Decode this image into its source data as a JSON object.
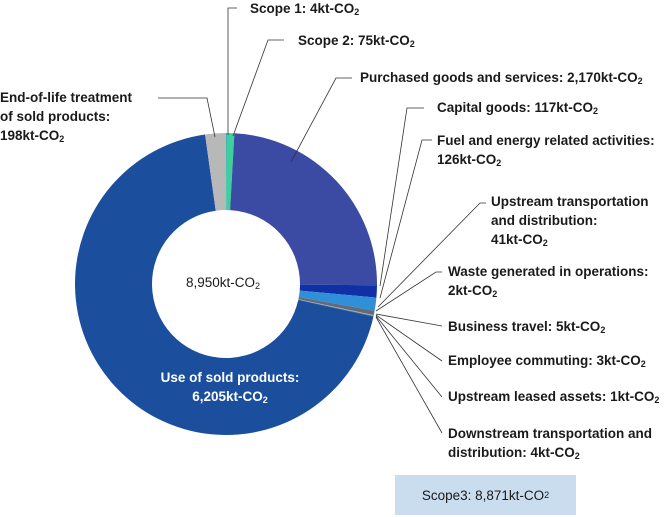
{
  "chart_data": {
    "type": "pie",
    "variant": "donut",
    "center_label": "8,950kt-CO₂",
    "total_box_label": "Scope3: 8,871kt-CO₂",
    "unit": "kt-CO₂",
    "start": "Scope 1 at 12 o'clock, clockwise",
    "slices": [
      {
        "id": "scope1",
        "label": "Scope 1: 4kt-CO₂",
        "value": 4,
        "color": "#1f78b4"
      },
      {
        "id": "scope2",
        "label": "Scope 2: 75kt-CO₂",
        "value": 75,
        "color": "#3ecf9e"
      },
      {
        "id": "purchased",
        "label": "Purchased goods and services: 2,170kt-CO₂",
        "value": 2170,
        "color": "#3b4aa3"
      },
      {
        "id": "capital",
        "label": "Capital goods: 117kt-CO₂",
        "value": 117,
        "color": "#1230a5"
      },
      {
        "id": "fuel",
        "label": "Fuel and energy related activities: 126kt-CO₂",
        "value": 126,
        "color": "#2f8fd8"
      },
      {
        "id": "upstream-transport",
        "label": "Upstream transportation and distribution: 41kt-CO₂",
        "value": 41,
        "color": "#5f6c7b"
      },
      {
        "id": "waste",
        "label": "Waste generated in operations: 2kt-CO₂",
        "value": 2,
        "color": "#8a8a8a"
      },
      {
        "id": "business-travel",
        "label": "Business travel: 5kt-CO₂",
        "value": 5,
        "color": "#9aa9bf"
      },
      {
        "id": "commuting",
        "label": "Employee commuting: 3kt-CO₂",
        "value": 3,
        "color": "#6f7f96"
      },
      {
        "id": "upstream-leased",
        "label": "Upstream leased assets: 1kt-CO₂",
        "value": 1,
        "color": "#4c5a6e"
      },
      {
        "id": "downstream-transport",
        "label": "Downstream transportation and distribution: 4kt-CO₂",
        "value": 4,
        "color": "#2b3a55"
      },
      {
        "id": "use-sold",
        "label": "Use of sold products: 6,205kt-CO₂",
        "value": 6205,
        "color": "#1b4f9e"
      },
      {
        "id": "end-of-life",
        "label": "End-of-life treatment of sold products: 198kt-CO₂",
        "value": 198,
        "color": "#b8b8b8"
      }
    ]
  },
  "labels": {
    "scope1": [
      "Scope 1: 4kt-CO",
      "2"
    ],
    "scope2": [
      "Scope 2: 75kt-CO",
      "2"
    ],
    "purchased": [
      "Purchased goods and services: 2,170kt-CO",
      "2"
    ],
    "capital": [
      "Capital goods: 117kt-CO",
      "2"
    ],
    "fuel_line1": "Fuel and energy related activities:",
    "fuel_line2": [
      "126kt-CO",
      "2"
    ],
    "upstream_transport_line1": "Upstream transportation",
    "upstream_transport_line2": "and distribution:",
    "upstream_transport_line3": [
      "41kt-CO",
      "2"
    ],
    "waste_line1": "Waste generated in operations:",
    "waste_line2": [
      "2kt-CO",
      "2"
    ],
    "business_travel": [
      "Business travel: 5kt-CO",
      "2"
    ],
    "commuting": [
      "Employee commuting: 3kt-CO",
      "2"
    ],
    "upstream_leased": [
      "Upstream leased assets: 1kt-CO",
      "2"
    ],
    "downstream_line1": "Downstream transportation and",
    "downstream_line2": [
      "distribution: 4kt-CO",
      "2"
    ],
    "use_sold_line1": "Use of sold products:",
    "use_sold_line2": [
      "6,205kt-CO",
      "2"
    ],
    "eol_line1": "End-of-life treatment",
    "eol_line2": "of sold products:",
    "eol_line3": [
      "198kt-CO",
      "2"
    ],
    "center": [
      "8,950kt-CO",
      "2"
    ],
    "scope3": [
      "Scope3: 8,871kt-CO",
      "2"
    ]
  }
}
